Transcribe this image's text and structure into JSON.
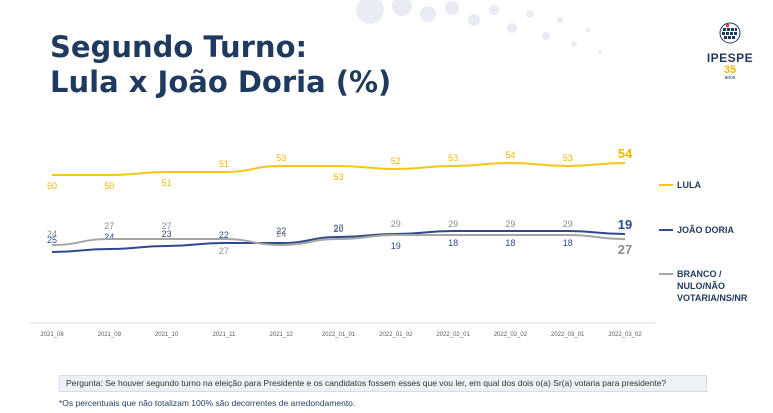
{
  "title_line1": "Segundo Turno:",
  "title_line2": "Lula x João Doria (%)",
  "logo": {
    "name": "IPESPE",
    "years": "35",
    "sub": "anos"
  },
  "colors": {
    "lula": "#f5c518",
    "doria": "#2e4a8c",
    "branco": "#a6a6a6",
    "title": "#1f3a5f"
  },
  "question": "Pergunta:  Se houver segundo turno na eleição para Presidente e os candidatos fossem esses que vou ler, em qual dos dois o(a) Sr(a) votaria para presidente?",
  "footnote": "*Os percentuais que não totalizam 100% são decorrentes de arredondamento.",
  "chart_data": {
    "type": "line",
    "x": [
      "2021_08",
      "2021_09",
      "2021_10",
      "2021_11",
      "2021_12",
      "2022_01_01",
      "2022_01_02",
      "2022_02_01",
      "2022_02_02",
      "2022_03_01",
      "2022_03_02"
    ],
    "series": [
      {
        "name": "LULA",
        "values": [
          50,
          50,
          51,
          51,
          53,
          53,
          52,
          53,
          54,
          53,
          54
        ]
      },
      {
        "name": "JOÃO DORIA",
        "values": [
          25,
          24,
          23,
          22,
          22,
          20,
          19,
          18,
          18,
          18,
          19
        ]
      },
      {
        "name": "BRANCO / NULO/NÃO VOTARIA/NS/NR",
        "values": [
          24,
          27,
          27,
          27,
          24,
          27,
          29,
          29,
          29,
          29,
          27
        ]
      }
    ],
    "grid": false,
    "legend_position": "right"
  }
}
